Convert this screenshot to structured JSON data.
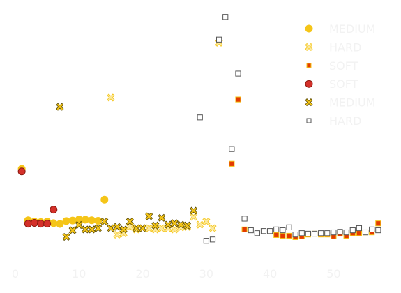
{
  "chart_data": {
    "type": "scatter",
    "title": "",
    "xlabel": "",
    "ylabel": "",
    "xlim": [
      0,
      58.5
    ],
    "ylim": [
      0,
      100
    ],
    "grid": false,
    "legend_position": "top-right",
    "x_ticks": [
      0,
      10,
      20,
      30,
      40,
      50
    ],
    "x_tick_labels": [
      "0",
      "10",
      "20",
      "30",
      "40",
      "50"
    ],
    "series": [
      {
        "name": "MEDIUM",
        "marker": "circle",
        "color": "#F5C518",
        "edge": "#F5C518",
        "points": [
          [
            1,
            38.1
          ],
          [
            2,
            18.6
          ],
          [
            3,
            18.1
          ],
          [
            4,
            17.9
          ],
          [
            5,
            18.1
          ],
          [
            6,
            17.5
          ],
          [
            7,
            17.2
          ],
          [
            8,
            18.3
          ],
          [
            9,
            18.5
          ],
          [
            10,
            18.9
          ],
          [
            11,
            18.8
          ],
          [
            12,
            18.6
          ],
          [
            13,
            18.4
          ],
          [
            14,
            26.4
          ]
        ]
      },
      {
        "name": "HARD",
        "marker": "x",
        "color": "#FBE9A1",
        "edge": "#F5C518",
        "points": [
          [
            15,
            65.1
          ],
          [
            16,
            13.1
          ],
          [
            17,
            13.6
          ],
          [
            18,
            16.1
          ],
          [
            19,
            15.1
          ],
          [
            20,
            15.6
          ],
          [
            21,
            15.6
          ],
          [
            22,
            15.1
          ],
          [
            23,
            15.6
          ],
          [
            24,
            15.6
          ],
          [
            25,
            15.1
          ],
          [
            26,
            15.9
          ],
          [
            27,
            16.1
          ],
          [
            28,
            19.9
          ],
          [
            29,
            16.9
          ],
          [
            30,
            18.1
          ],
          [
            31,
            15.6
          ],
          [
            32,
            85.9
          ]
        ]
      },
      {
        "name": "SOFT",
        "marker": "square",
        "color": "#E33A00",
        "edge": "#F5C518",
        "points": [
          [
            34,
            40.0
          ],
          [
            35,
            64.4
          ],
          [
            36,
            15.1
          ],
          [
            41,
            13.0
          ],
          [
            42,
            12.7
          ],
          [
            43,
            12.7
          ],
          [
            44,
            12.2
          ],
          [
            45,
            12.5
          ],
          [
            46,
            13.2
          ],
          [
            47,
            13.5
          ],
          [
            48,
            13.2
          ],
          [
            49,
            13.2
          ],
          [
            50,
            12.5
          ],
          [
            51,
            13.5
          ],
          [
            52,
            12.7
          ],
          [
            53,
            13.7
          ],
          [
            54,
            13.7
          ],
          [
            55,
            14.0
          ],
          [
            56,
            14.0
          ],
          [
            57,
            17.4
          ]
        ]
      },
      {
        "name": "SOFT",
        "marker": "circle",
        "color": "#D4302A",
        "edge": "#8B1A10",
        "points": [
          [
            1,
            37.1
          ],
          [
            2,
            17.3
          ],
          [
            3,
            17.6
          ],
          [
            4,
            17.3
          ],
          [
            5,
            17.3
          ],
          [
            6,
            22.6
          ]
        ]
      },
      {
        "name": "MEDIUM",
        "marker": "x",
        "color": "#F5C518",
        "edge": "#5A4A00",
        "points": [
          [
            7,
            61.6
          ],
          [
            8,
            12.3
          ],
          [
            9,
            14.8
          ],
          [
            10,
            16.8
          ],
          [
            11,
            15.1
          ],
          [
            12,
            15.1
          ],
          [
            13,
            15.6
          ],
          [
            14,
            18.1
          ],
          [
            15,
            15.6
          ],
          [
            16,
            16.1
          ],
          [
            17,
            15.1
          ],
          [
            18,
            18.1
          ],
          [
            19,
            15.6
          ],
          [
            20,
            15.6
          ],
          [
            21,
            20.1
          ],
          [
            22,
            16.6
          ],
          [
            23,
            19.5
          ],
          [
            24,
            16.9
          ],
          [
            25,
            17.5
          ],
          [
            26,
            16.9
          ],
          [
            27,
            16.6
          ],
          [
            28,
            22.2
          ]
        ]
      },
      {
        "name": "HARD",
        "marker": "square",
        "color": "#ffffff",
        "edge": "#555555",
        "points": [
          [
            29,
            57.6
          ],
          [
            30,
            10.8
          ],
          [
            31,
            11.3
          ],
          [
            32,
            87.1
          ],
          [
            33,
            95.7
          ],
          [
            34,
            45.6
          ],
          [
            35,
            74.2
          ],
          [
            36,
            19.2
          ],
          [
            37,
            14.8
          ],
          [
            38,
            13.7
          ],
          [
            39,
            14.5
          ],
          [
            40,
            14.5
          ],
          [
            41,
            15.1
          ],
          [
            42,
            14.8
          ],
          [
            43,
            15.9
          ],
          [
            44,
            13.2
          ],
          [
            45,
            13.7
          ],
          [
            46,
            13.5
          ],
          [
            47,
            13.5
          ],
          [
            48,
            13.7
          ],
          [
            49,
            13.7
          ],
          [
            50,
            14.0
          ],
          [
            51,
            14.2
          ],
          [
            52,
            14.0
          ],
          [
            53,
            14.8
          ],
          [
            54,
            15.6
          ],
          [
            55,
            14.0
          ],
          [
            56,
            15.1
          ],
          [
            57,
            14.8
          ]
        ]
      }
    ]
  }
}
